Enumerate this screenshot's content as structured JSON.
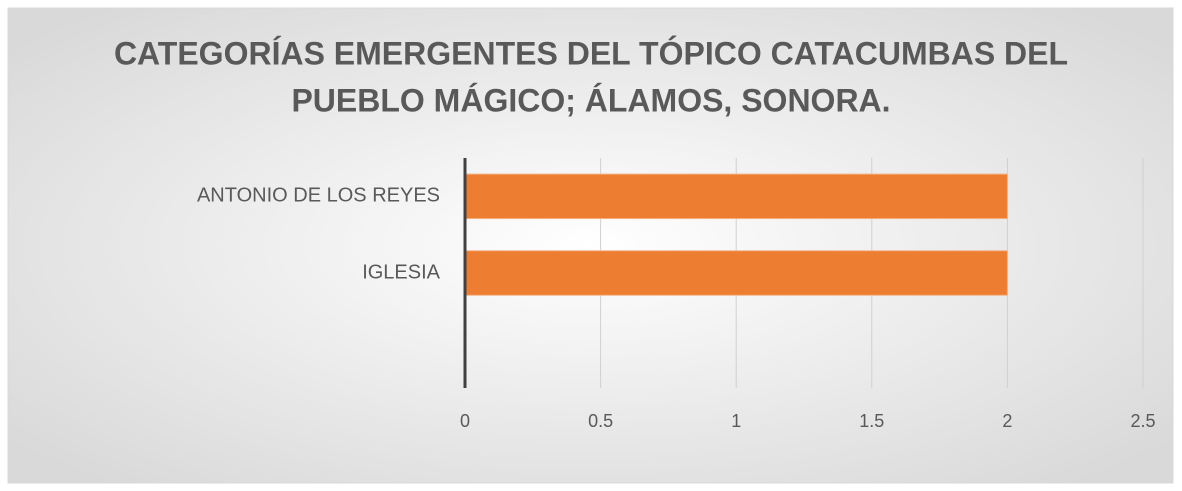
{
  "chart_data": {
    "type": "bar",
    "orientation": "horizontal",
    "title": [
      "CATEGORÍAS EMERGENTES DEL TÓPICO CATACUMBAS DEL",
      "PUEBLO MÁGICO; ÁLAMOS, SONORA."
    ],
    "categories": [
      "ANTONIO DE LOS REYES",
      "IGLESIA",
      null
    ],
    "values": [
      2,
      2,
      null
    ],
    "color": "#ed7d31",
    "xlim": [
      0,
      2.5
    ],
    "xticks": [
      0,
      0.5,
      1,
      1.5,
      2,
      2.5
    ],
    "grid": true
  }
}
